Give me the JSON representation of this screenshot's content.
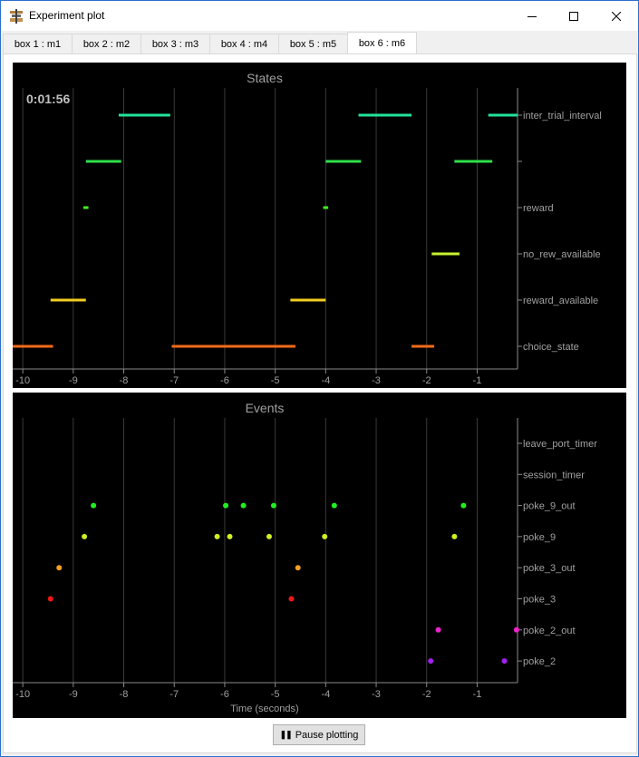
{
  "window": {
    "title": "Experiment plot",
    "minimize_icon": "minimize-icon",
    "maximize_icon": "maximize-icon",
    "close_icon": "close-icon"
  },
  "tabs": [
    {
      "label": "box 1 : m1"
    },
    {
      "label": "box 2 : m2"
    },
    {
      "label": "box 3 : m3"
    },
    {
      "label": "box 4 : m4"
    },
    {
      "label": "box 5 : m5"
    },
    {
      "label": "box 6 : m6",
      "active": true
    }
  ],
  "timer": "0:01:56",
  "pause_button": {
    "label": "Pause plotting",
    "icon": "pause-icon"
  },
  "chart_data": [
    {
      "type": "timeline",
      "title": "States",
      "xlim": [
        -10.2,
        -0.2
      ],
      "xticks": [
        "-10",
        "-9",
        "-8",
        "-7",
        "-6",
        "-5",
        "-4",
        "-3",
        "-2",
        "-1"
      ],
      "grid": true,
      "rows": [
        {
          "label": "inter_trial_interval",
          "color": "#22e39a",
          "segments": [
            [
              -8.1,
              -7.08
            ],
            [
              -3.35,
              -2.3
            ],
            [
              -0.78,
              -0.2
            ]
          ]
        },
        {
          "label": "",
          "color": "#2ee04a",
          "segments": [
            [
              -8.75,
              -8.05
            ],
            [
              -4.0,
              -3.3
            ],
            [
              -1.45,
              -0.7
            ]
          ]
        },
        {
          "label": "reward",
          "color": "#44ee22",
          "segments": [
            [
              -8.8,
              -8.7
            ],
            [
              -4.05,
              -3.95
            ]
          ]
        },
        {
          "label": "no_rew_available",
          "color": "#c8f230",
          "segments": [
            [
              -1.9,
              -1.35
            ]
          ]
        },
        {
          "label": "reward_available",
          "color": "#f2cc22",
          "segments": [
            [
              -9.45,
              -8.75
            ],
            [
              -4.7,
              -4.0
            ]
          ]
        },
        {
          "label": "choice_state",
          "color": "#f26a18",
          "segments": [
            [
              -10.2,
              -9.4
            ],
            [
              -7.05,
              -4.6
            ],
            [
              -2.3,
              -1.85
            ]
          ]
        }
      ]
    },
    {
      "type": "scatter",
      "title": "Events",
      "xlabel": "Time (seconds)",
      "xlim": [
        -10.2,
        -0.2
      ],
      "xticks": [
        "-10",
        "-9",
        "-8",
        "-7",
        "-6",
        "-5",
        "-4",
        "-3",
        "-2",
        "-1"
      ],
      "grid": true,
      "rows": [
        {
          "label": "leave_port_timer",
          "color": "#ffffff",
          "x": []
        },
        {
          "label": "session_timer",
          "color": "#ffffff",
          "x": []
        },
        {
          "label": "poke_9_out",
          "color": "#22ee22",
          "x": [
            -8.6,
            -5.98,
            -5.63,
            -5.03,
            -3.83,
            -1.27
          ]
        },
        {
          "label": "poke_9",
          "color": "#ccf022",
          "x": [
            -8.78,
            -6.15,
            -5.9,
            -5.12,
            -4.02,
            -1.45
          ]
        },
        {
          "label": "poke_3_out",
          "color": "#f2a020",
          "x": [
            -9.28,
            -4.55
          ]
        },
        {
          "label": "poke_3",
          "color": "#ee1818",
          "x": [
            -9.45,
            -4.68
          ]
        },
        {
          "label": "poke_2_out",
          "color": "#ee22cc",
          "x": [
            -1.77,
            -0.22
          ]
        },
        {
          "label": "poke_2",
          "color": "#a020ee",
          "x": [
            -1.92,
            -0.46
          ]
        }
      ]
    }
  ]
}
